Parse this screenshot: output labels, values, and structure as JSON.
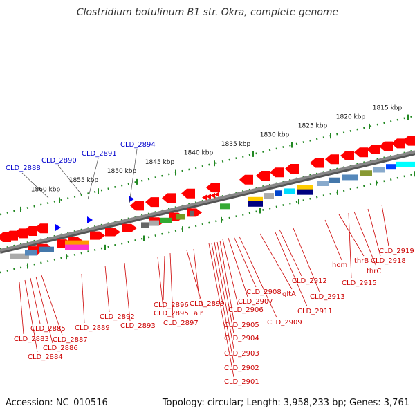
{
  "title": "Clostridium botulinum B1 str. Okra, complete genome",
  "footer": {
    "accession": "Accession: NC_010516",
    "summary": "Topology: circular; Length: 3,958,233 bp; Genes: 3,761"
  },
  "colors": {
    "gene_arrow": "#ff0000",
    "backbone": "#888888",
    "tick": "#228822",
    "label_red": "#cc0000",
    "label_blue": "#0000cc"
  },
  "scale_labels": [
    "1815 kbp",
    "1820 kbp",
    "1825 kbp",
    "1830 kbp",
    "1835 kbp",
    "1840 kbp",
    "1845 kbp",
    "1850 kbp",
    "1855 kbp",
    "1860 kbp"
  ],
  "blue_labels": [
    "CLD_2888",
    "CLD_2890",
    "CLD_2891",
    "CLD_2894"
  ],
  "red_labels": [
    "CLD_2883",
    "CLD_2884",
    "CLD_2885",
    "CLD_2886",
    "CLD_2887",
    "CLD_2889",
    "CLD_2892",
    "CLD_2893",
    "CLD_2895",
    "CLD_2896",
    "CLD_2897",
    "alr",
    "CLD_2899",
    "CLD_2901",
    "CLD_2902",
    "CLD_2903",
    "CLD_2904",
    "CLD_2905",
    "CLD_2906",
    "CLD_2907",
    "CLD_2908",
    "gltA",
    "CLD_2909",
    "CLD_2911",
    "CLD_2912",
    "CLD_2913",
    "hom",
    "thrB",
    "CLD_2915",
    "thrC",
    "CLD_2918",
    "CLD_2919"
  ]
}
